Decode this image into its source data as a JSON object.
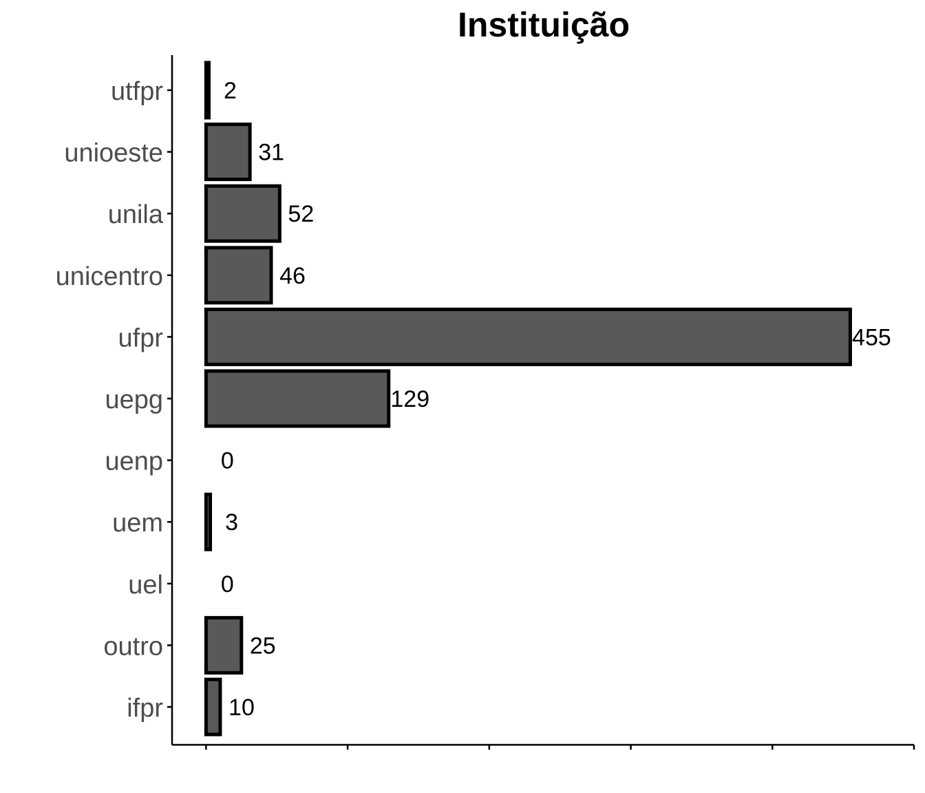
{
  "chart_data": {
    "type": "bar",
    "orientation": "horizontal",
    "title": "Instituição",
    "xlabel": "",
    "ylabel": "",
    "categories": [
      "utfpr",
      "unioeste",
      "unila",
      "unicentro",
      "ufpr",
      "uepg",
      "uenp",
      "uem",
      "uel",
      "outro",
      "ifpr"
    ],
    "values": [
      2,
      31,
      52,
      46,
      455,
      129,
      0,
      3,
      0,
      25,
      10
    ],
    "xlim": [
      -24,
      500
    ],
    "x_ticks": [
      0,
      100,
      200,
      300,
      400,
      500
    ],
    "x_tick_labels_visible": false,
    "grid": false,
    "legend": "none",
    "bar_fill": "#595959",
    "bar_stroke": "#000000"
  }
}
